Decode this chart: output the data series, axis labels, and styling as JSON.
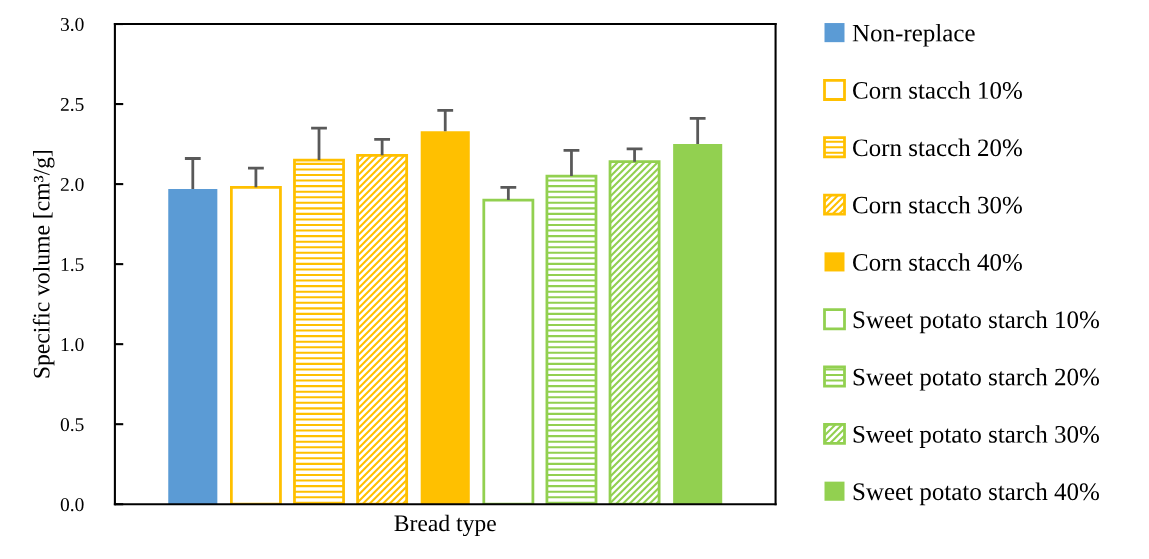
{
  "chart_data": {
    "type": "bar",
    "xlabel": "Bread type",
    "ylabel": "Specific volume [cm³/g]",
    "categories": [
      null
    ],
    "series": [
      {
        "name": "Non-replace",
        "color": "#5b9bd5",
        "values": [
          1.97
        ],
        "errors": [
          [
            1.97,
            2.16
          ]
        ]
      },
      {
        "name": "Corn stacch 10%",
        "color": "#ffc000",
        "values": [
          1.98
        ],
        "errors": [
          [
            1.98,
            2.1
          ]
        ]
      },
      {
        "name": "Corn stacch 20%",
        "color": "#ffc000",
        "values": [
          2.15
        ],
        "errors": [
          [
            2.15,
            2.35
          ]
        ]
      },
      {
        "name": "Corn stacch 30%",
        "color": "#ffc000",
        "values": [
          2.18
        ],
        "errors": [
          [
            2.18,
            2.28
          ]
        ]
      },
      {
        "name": "Corn stacch 40%",
        "color": "#ffc000",
        "values": [
          2.33
        ],
        "errors": [
          [
            2.33,
            2.46
          ]
        ]
      },
      {
        "name": "Sweet potato starch 10%",
        "color": "#92d050",
        "values": [
          1.9
        ],
        "errors": [
          [
            1.9,
            1.98
          ]
        ]
      },
      {
        "name": "Sweet potato starch 20%",
        "color": "#92d050",
        "values": [
          2.05
        ],
        "errors": [
          [
            2.05,
            2.21
          ]
        ]
      },
      {
        "name": "Sweet potato starch 30%",
        "color": "#92d050",
        "values": [
          2.14
        ],
        "errors": [
          [
            2.14,
            2.22
          ]
        ]
      },
      {
        "name": "Sweet potato starch 40%",
        "color": "#92d050",
        "values": [
          2.25
        ],
        "errors": [
          [
            2.25,
            2.41
          ]
        ]
      }
    ],
    "ylim": [
      0,
      3
    ],
    "yticks": [
      {
        "value": 0,
        "label": "0.0"
      },
      {
        "value": 0.5,
        "label": "0.5"
      },
      {
        "value": 1,
        "label": "1.0"
      },
      {
        "value": 1.5,
        "label": "1.5"
      },
      {
        "value": 2,
        "label": "2.0"
      },
      {
        "value": 2.5,
        "label": "2.5"
      },
      {
        "value": 3,
        "label": "3.0"
      }
    ],
    "grid": false,
    "legend": "right"
  }
}
